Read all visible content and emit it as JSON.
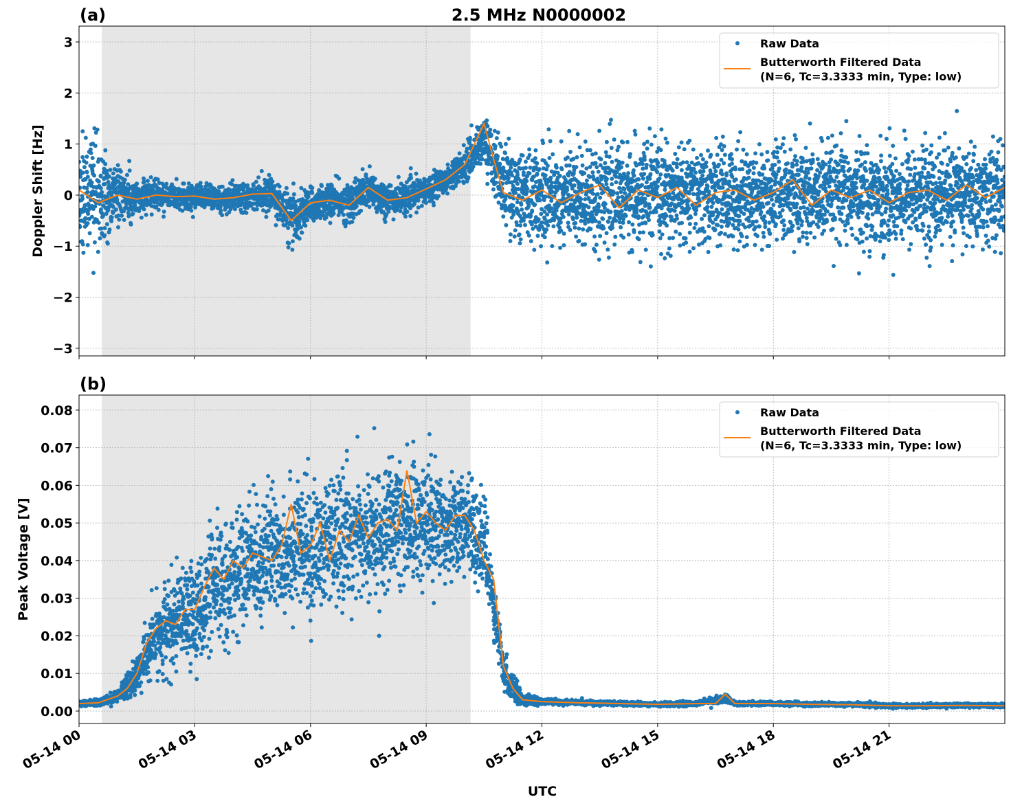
{
  "chart_data": [
    {
      "type": "scatter",
      "panel_label": "(a)",
      "title": "2.5 MHz N0000002",
      "ylabel": "Doppler Shift [Hz]",
      "xlabel": "",
      "xlim_hours": [
        0,
        24
      ],
      "ylim": [
        -3.15,
        3.31
      ],
      "yticks": [
        -3,
        -2,
        -1,
        0,
        1,
        2,
        3
      ],
      "ytick_labels": [
        "−3",
        "−2",
        "−1",
        "0",
        "1",
        "2",
        "3"
      ],
      "grid": true,
      "shaded_interval_hours": [
        0.59,
        10.15
      ],
      "shade_color": "#e6e6e6",
      "legend_position": "top-right",
      "legend": [
        "Raw Data",
        "Butterworth Filtered Data\n(N=6, Tc=3.3333 min, Type: low)"
      ],
      "legend_lines": [
        "Raw Data",
        "Butterworth Filtered Data",
        "(N=6, Tc=3.3333 min, Type: low)"
      ],
      "series": [
        {
          "name": "Raw Data",
          "kind": "scatter",
          "color": "#1f77b4",
          "hours": [
            0,
            0.5,
            1,
            1.5,
            2,
            2.5,
            3,
            3.5,
            4,
            4.5,
            5,
            5.5,
            6,
            6.5,
            7,
            7.5,
            8,
            8.5,
            9,
            9.5,
            10,
            10.5,
            11,
            11.5,
            12,
            13,
            14,
            15,
            16,
            17,
            18,
            19,
            20,
            21,
            22,
            23,
            24
          ],
          "center": [
            0.1,
            -0.1,
            0,
            -0.05,
            0,
            -0.02,
            -0.02,
            -0.05,
            -0.05,
            0,
            0.02,
            -0.5,
            -0.2,
            -0.1,
            -0.15,
            0.1,
            -0.1,
            -0.05,
            0.1,
            0.3,
            0.6,
            1.1,
            0.2,
            0,
            0,
            0,
            0,
            0,
            0,
            0,
            0,
            0,
            0,
            0,
            0,
            0,
            0
          ],
          "spread": [
            1.4,
            1.1,
            0.65,
            0.4,
            0.3,
            0.3,
            0.3,
            0.3,
            0.3,
            0.3,
            0.35,
            0.6,
            0.4,
            0.4,
            0.45,
            0.45,
            0.4,
            0.35,
            0.3,
            0.3,
            0.4,
            0.5,
            0.9,
            1.05,
            1.1,
            1.1,
            1.1,
            1.1,
            1.1,
            1.1,
            1.1,
            1.1,
            1.1,
            1.1,
            1.1,
            1.1,
            1.1
          ]
        },
        {
          "name": "Butterworth Filtered Data",
          "kind": "line",
          "color": "#ff7f0e",
          "hours": [
            0,
            0.5,
            1,
            1.5,
            2,
            2.5,
            3,
            3.5,
            4,
            4.5,
            5,
            5.5,
            6,
            6.5,
            7,
            7.5,
            8,
            8.5,
            9,
            9.5,
            10,
            10.5,
            10.75,
            11,
            11.5,
            12,
            12.5,
            13,
            13.5,
            14,
            14.5,
            15,
            15.5,
            16,
            16.5,
            17,
            17.5,
            18,
            18.5,
            19,
            19.5,
            20,
            20.5,
            21,
            21.5,
            22,
            22.5,
            23,
            23.5,
            24
          ],
          "values": [
            0.1,
            -0.15,
            0,
            -0.08,
            0,
            -0.03,
            -0.02,
            -0.08,
            -0.05,
            0.02,
            0.03,
            -0.5,
            -0.15,
            -0.1,
            -0.2,
            0.15,
            -0.1,
            -0.05,
            0.12,
            0.3,
            0.6,
            1.4,
            0.7,
            0.05,
            -0.1,
            0.1,
            -0.15,
            0.05,
            0.2,
            -0.25,
            0.1,
            -0.05,
            0.15,
            -0.2,
            0.05,
            0.1,
            -0.1,
            0.05,
            0.3,
            -0.2,
            0.1,
            -0.05,
            0.1,
            -0.15,
            0.05,
            0.1,
            -0.1,
            0.2,
            -0.05,
            0.15
          ]
        }
      ]
    },
    {
      "type": "scatter",
      "panel_label": "(b)",
      "title": "",
      "ylabel": "Peak Voltage [V]",
      "xlabel": "UTC",
      "xlim_hours": [
        0,
        24
      ],
      "ylim": [
        -0.0033,
        0.084
      ],
      "yticks": [
        0,
        0.01,
        0.02,
        0.03,
        0.04,
        0.05,
        0.06,
        0.07,
        0.08
      ],
      "ytick_labels": [
        "0.00",
        "0.01",
        "0.02",
        "0.03",
        "0.04",
        "0.05",
        "0.06",
        "0.07",
        "0.08"
      ],
      "xtick_labels": [
        "05-14 00",
        "05-14 03",
        "05-14 06",
        "05-14 09",
        "05-14 12",
        "05-14 15",
        "05-14 18",
        "05-14 21"
      ],
      "xtick_hours": [
        0,
        3,
        6,
        9,
        12,
        15,
        18,
        21
      ],
      "grid": true,
      "shaded_interval_hours": [
        0.59,
        10.15
      ],
      "shade_color": "#e6e6e6",
      "legend_position": "top-right",
      "legend": [
        "Raw Data",
        "Butterworth Filtered Data\n(N=6, Tc=3.3333 min, Type: low)"
      ],
      "legend_lines": [
        "Raw Data",
        "Butterworth Filtered Data",
        "(N=6, Tc=3.3333 min, Type: low)"
      ],
      "series": [
        {
          "name": "Raw Data",
          "kind": "scatter",
          "color": "#1f77b4",
          "hours": [
            0,
            0.5,
            1,
            1.5,
            2,
            2.5,
            3,
            3.5,
            4,
            4.5,
            5,
            5.5,
            6,
            6.5,
            7,
            7.5,
            8,
            8.5,
            9,
            9.5,
            10,
            10.5,
            11,
            11.5,
            12,
            13,
            14,
            15,
            16,
            16.75,
            17,
            18,
            19,
            20,
            21,
            22,
            23,
            24
          ],
          "center": [
            0.002,
            0.0022,
            0.004,
            0.01,
            0.02,
            0.023,
            0.026,
            0.032,
            0.036,
            0.04,
            0.042,
            0.044,
            0.042,
            0.045,
            0.047,
            0.046,
            0.048,
            0.051,
            0.05,
            0.05,
            0.05,
            0.045,
            0.01,
            0.003,
            0.0025,
            0.0022,
            0.002,
            0.0018,
            0.002,
            0.0035,
            0.002,
            0.002,
            0.0018,
            0.0018,
            0.0014,
            0.0014,
            0.0015,
            0.0015
          ],
          "spread": [
            0.0008,
            0.0009,
            0.002,
            0.006,
            0.012,
            0.014,
            0.016,
            0.018,
            0.018,
            0.019,
            0.019,
            0.019,
            0.02,
            0.019,
            0.019,
            0.019,
            0.019,
            0.02,
            0.018,
            0.016,
            0.015,
            0.012,
            0.006,
            0.0018,
            0.0008,
            0.0007,
            0.0006,
            0.0006,
            0.0007,
            0.0012,
            0.0006,
            0.0006,
            0.0006,
            0.0006,
            0.0006,
            0.0006,
            0.0006,
            0.0006
          ]
        },
        {
          "name": "Butterworth Filtered Data",
          "kind": "line",
          "color": "#ff7f0e",
          "hours": [
            0,
            0.5,
            1,
            1.25,
            1.5,
            1.75,
            2,
            2.25,
            2.5,
            2.75,
            3,
            3.25,
            3.5,
            3.75,
            4,
            4.25,
            4.5,
            4.75,
            5,
            5.25,
            5.5,
            5.75,
            6,
            6.25,
            6.5,
            6.75,
            7,
            7.25,
            7.5,
            7.75,
            8,
            8.25,
            8.5,
            8.75,
            9,
            9.25,
            9.5,
            9.75,
            10,
            10.25,
            10.5,
            10.75,
            11,
            11.25,
            11.5,
            12,
            13,
            14,
            15,
            16,
            16.5,
            16.75,
            17,
            18,
            19,
            20,
            21,
            22,
            23,
            24
          ],
          "values": [
            0.002,
            0.0022,
            0.004,
            0.006,
            0.01,
            0.018,
            0.022,
            0.024,
            0.023,
            0.027,
            0.027,
            0.033,
            0.038,
            0.035,
            0.04,
            0.038,
            0.042,
            0.041,
            0.04,
            0.044,
            0.055,
            0.042,
            0.044,
            0.05,
            0.04,
            0.048,
            0.045,
            0.052,
            0.046,
            0.05,
            0.051,
            0.048,
            0.064,
            0.05,
            0.053,
            0.05,
            0.048,
            0.052,
            0.052,
            0.048,
            0.04,
            0.035,
            0.012,
            0.006,
            0.003,
            0.0025,
            0.0022,
            0.002,
            0.0018,
            0.002,
            0.002,
            0.0045,
            0.002,
            0.002,
            0.0018,
            0.0017,
            0.0014,
            0.0014,
            0.0015,
            0.0014
          ]
        }
      ]
    }
  ]
}
